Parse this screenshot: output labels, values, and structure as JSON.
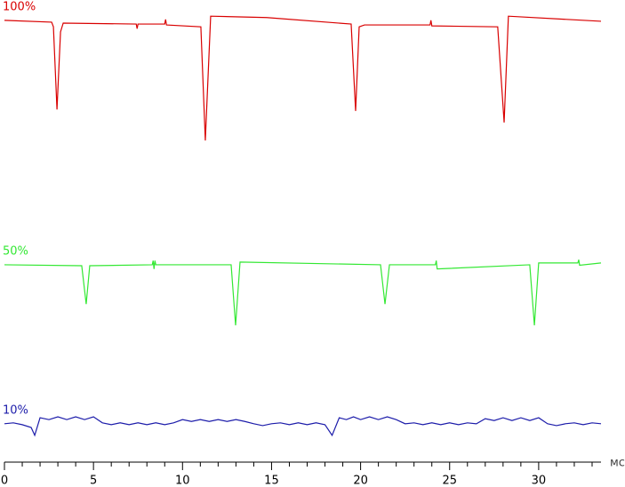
{
  "chart_data": {
    "type": "line",
    "x_label": "мс",
    "xlim": [
      0,
      33.5
    ],
    "xticks": [
      0,
      5,
      10,
      15,
      20,
      25,
      30
    ],
    "xminor_ticks": [
      1,
      2,
      3,
      4,
      6,
      7,
      8,
      9,
      11,
      12,
      13,
      14,
      16,
      17,
      18,
      19,
      21,
      22,
      23,
      24,
      26,
      27,
      28,
      29,
      31,
      32,
      33
    ],
    "ylim": [
      0,
      100
    ],
    "series": [
      {
        "name": "100%",
        "color": "#d90000",
        "x": [
          0,
          2.65,
          2.75,
          2.95,
          3.15,
          3.3,
          7.4,
          7.45,
          7.5,
          9.0,
          9.05,
          9.1,
          11.03,
          11.28,
          11.58,
          14.73,
          19.47,
          19.72,
          19.92,
          20.22,
          23.9,
          23.95,
          24.0,
          27.7,
          28.06,
          28.3,
          33.5
        ],
        "values": [
          95.6,
          95.2,
          94.2,
          76.3,
          93.1,
          95.0,
          94.8,
          93.8,
          94.8,
          94.8,
          95.8,
          94.6,
          94.2,
          69.6,
          96.5,
          96.2,
          94.8,
          76.0,
          94.2,
          94.6,
          94.6,
          95.6,
          94.4,
          94.2,
          73.5,
          96.5,
          95.4
        ]
      },
      {
        "name": "50%",
        "color": "#33e833",
        "x": [
          0,
          4.34,
          4.59,
          4.79,
          8.3,
          8.35,
          8.4,
          8.45,
          8.5,
          12.73,
          12.98,
          13.23,
          21.12,
          21.37,
          21.62,
          24.2,
          24.25,
          24.3,
          29.5,
          29.76,
          30.0,
          32.2,
          32.25,
          32.3,
          33.5
        ],
        "values": [
          42.7,
          42.5,
          34.2,
          42.5,
          42.7,
          43.6,
          41.8,
          43.6,
          42.7,
          42.7,
          29.6,
          43.3,
          42.7,
          34.2,
          42.7,
          42.7,
          43.6,
          41.8,
          42.7,
          29.6,
          43.1,
          43.1,
          43.8,
          42.6,
          43.1
        ]
      },
      {
        "name": "10%",
        "color": "#1c1caa",
        "x": [
          0,
          0.5,
          1.0,
          1.5,
          1.7,
          2.0,
          2.5,
          3.0,
          3.5,
          4.0,
          4.5,
          5.0,
          5.5,
          6.0,
          6.5,
          7.0,
          7.5,
          8.0,
          8.5,
          9.0,
          9.5,
          10.0,
          10.5,
          11.0,
          11.5,
          12.0,
          12.5,
          13.0,
          13.5,
          14.0,
          14.5,
          15.0,
          15.5,
          16.0,
          16.5,
          17.0,
          17.5,
          18.0,
          18.4,
          18.8,
          19.2,
          19.6,
          20.0,
          20.5,
          21.0,
          21.5,
          22.0,
          22.5,
          23.0,
          23.5,
          24.0,
          24.5,
          25.0,
          25.5,
          26.0,
          26.5,
          27.0,
          27.5,
          28.0,
          28.5,
          29.0,
          29.5,
          30.0,
          30.5,
          31.0,
          31.5,
          32.0,
          32.5,
          33.0,
          33.5
        ],
        "values": [
          8.3,
          8.5,
          8.1,
          7.5,
          5.8,
          9.6,
          9.2,
          9.8,
          9.2,
          9.8,
          9.2,
          9.8,
          8.5,
          8.1,
          8.5,
          8.1,
          8.5,
          8.1,
          8.5,
          8.1,
          8.5,
          9.2,
          8.8,
          9.2,
          8.8,
          9.2,
          8.8,
          9.2,
          8.8,
          8.3,
          7.9,
          8.3,
          8.5,
          8.1,
          8.5,
          8.1,
          8.5,
          8.1,
          5.8,
          9.6,
          9.2,
          9.8,
          9.2,
          9.8,
          9.2,
          9.8,
          9.2,
          8.3,
          8.5,
          8.1,
          8.5,
          8.1,
          8.5,
          8.1,
          8.5,
          8.3,
          9.4,
          9.0,
          9.6,
          9.0,
          9.6,
          9.0,
          9.6,
          8.3,
          7.9,
          8.3,
          8.5,
          8.1,
          8.5,
          8.3
        ]
      }
    ]
  }
}
